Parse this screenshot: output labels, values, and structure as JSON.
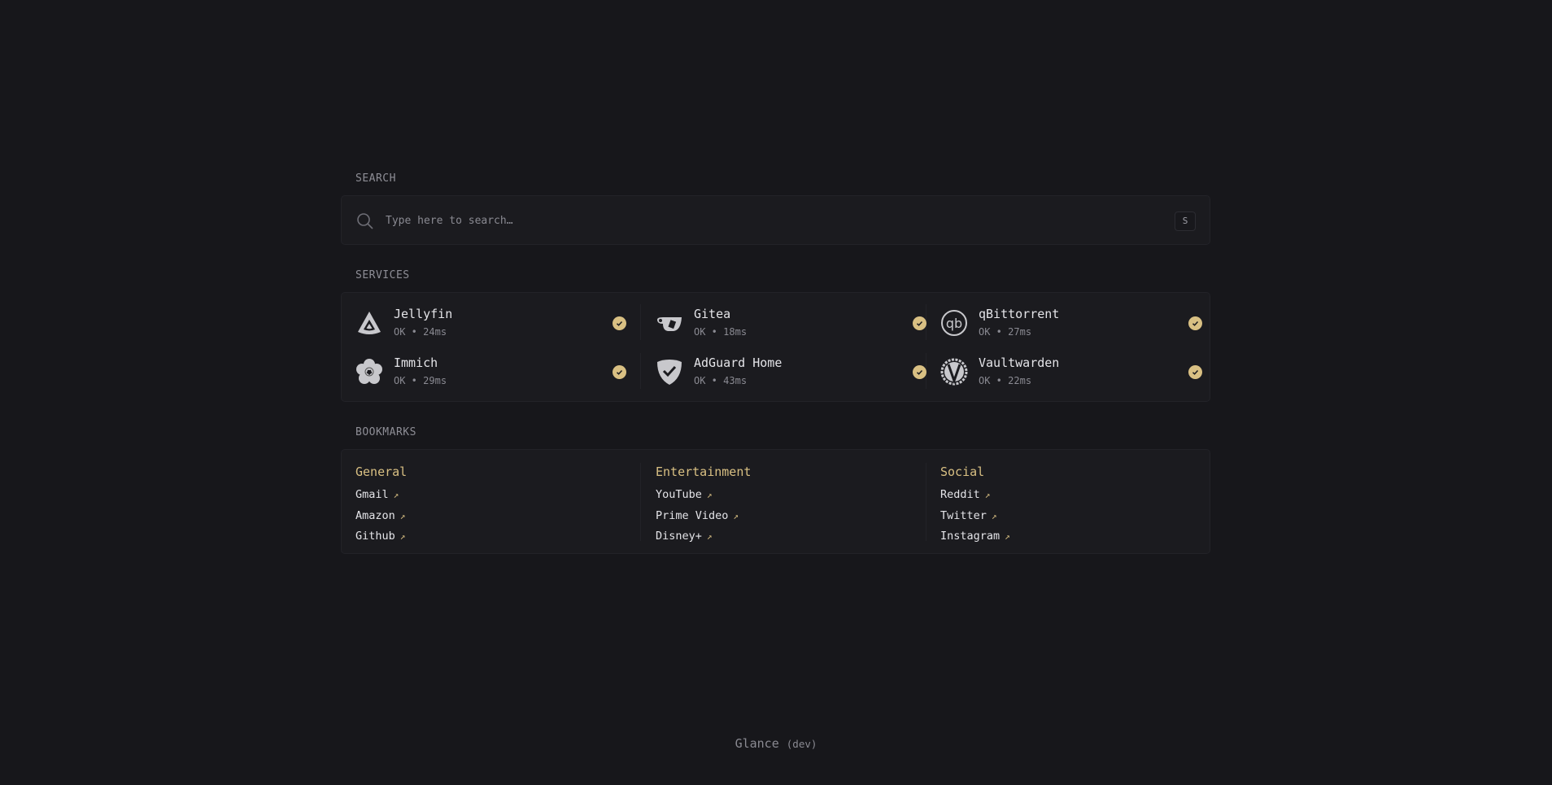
{
  "search": {
    "label": "SEARCH",
    "placeholder": "Type here to search…",
    "shortcut": "S"
  },
  "services": {
    "label": "SERVICES",
    "items": [
      {
        "name": "Jellyfin",
        "status": "OK",
        "latency": "24ms",
        "icon": "jellyfin-icon"
      },
      {
        "name": "Gitea",
        "status": "OK",
        "latency": "18ms",
        "icon": "gitea-icon"
      },
      {
        "name": "qBittorrent",
        "status": "OK",
        "latency": "27ms",
        "icon": "qbittorrent-icon"
      },
      {
        "name": "Immich",
        "status": "OK",
        "latency": "29ms",
        "icon": "immich-icon"
      },
      {
        "name": "AdGuard Home",
        "status": "OK",
        "latency": "43ms",
        "icon": "adguard-icon"
      },
      {
        "name": "Vaultwarden",
        "status": "OK",
        "latency": "22ms",
        "icon": "vaultwarden-icon"
      }
    ]
  },
  "bookmarks": {
    "label": "BOOKMARKS",
    "groups": [
      {
        "title": "General",
        "links": [
          "Gmail",
          "Amazon",
          "Github"
        ]
      },
      {
        "title": "Entertainment",
        "links": [
          "YouTube",
          "Prime Video",
          "Disney+"
        ]
      },
      {
        "title": "Social",
        "links": [
          "Reddit",
          "Twitter",
          "Instagram"
        ]
      }
    ]
  },
  "footer": {
    "app": "Glance",
    "version": "(dev)"
  },
  "colors": {
    "background": "#17171b",
    "panel": "#1b1b1f",
    "accent": "#d9c083"
  }
}
